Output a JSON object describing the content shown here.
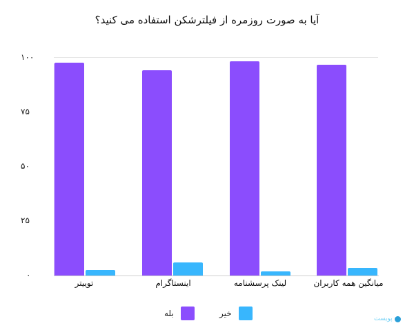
{
  "chart_data": {
    "type": "bar",
    "title": "آیا به صورت روزمره از فیلترشکن استفاده می کنید؟",
    "xlabel": "",
    "ylabel": "",
    "ylim": [
      0,
      100
    ],
    "yticks": [
      "۰",
      "۲۵",
      "۵۰",
      "۷۵",
      "۱۰۰"
    ],
    "ytick_values": [
      0,
      25,
      50,
      75,
      100
    ],
    "grid": "top line only",
    "categories": [
      "توییتر",
      "اینستاگرام",
      "لینک پرسشنامه",
      "میانگین همه کاربران"
    ],
    "series": [
      {
        "name": "بله",
        "color": "#8b4dfd",
        "values": [
          97.5,
          94,
          98,
          96.5
        ]
      },
      {
        "name": "خیر",
        "color": "#38b6fd",
        "values": [
          2.5,
          6,
          2,
          3.5
        ]
      }
    ],
    "legend_position": "bottom"
  },
  "legend": [
    {
      "label": "بله",
      "color": "#8b4dfd"
    },
    {
      "label": "خیر",
      "color": "#38b6fd"
    }
  ],
  "watermark": {
    "text": "پویست"
  }
}
